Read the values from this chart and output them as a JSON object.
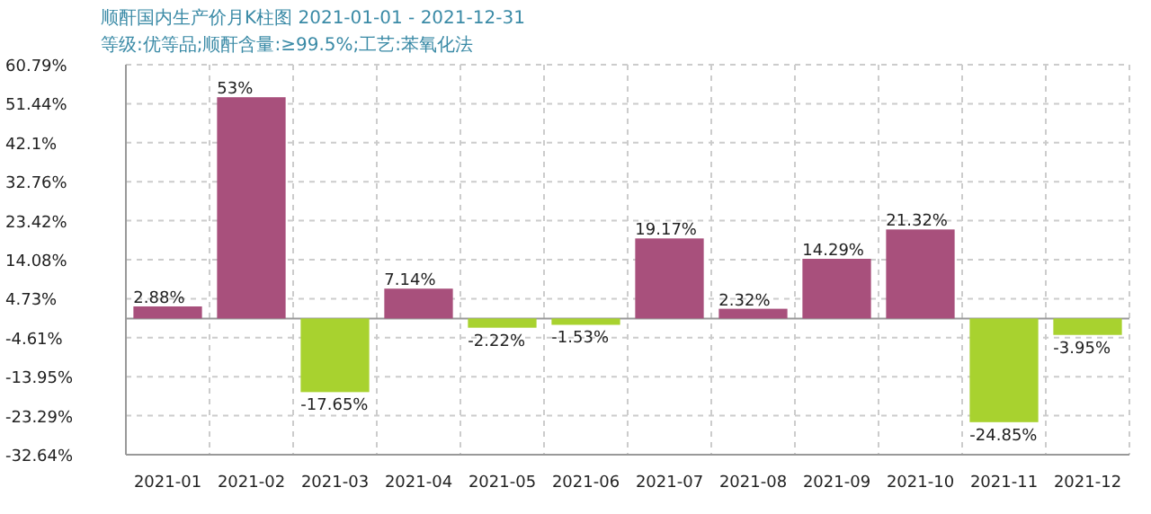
{
  "chart_data": {
    "type": "bar",
    "title": "顺酐国内生产价月K柱图  2021-01-01  -  2021-12-31",
    "subtitle": "等级:优等品;顺酐含量:≥99.5%;工艺:苯氧化法",
    "categories": [
      "2021-01",
      "2021-02",
      "2021-03",
      "2021-04",
      "2021-05",
      "2021-06",
      "2021-07",
      "2021-08",
      "2021-09",
      "2021-10",
      "2021-11",
      "2021-12"
    ],
    "values": [
      2.88,
      53,
      -17.65,
      7.14,
      -2.22,
      -1.53,
      19.17,
      2.32,
      14.29,
      21.32,
      -24.85,
      -3.95
    ],
    "colors": [
      "#a8507c",
      "#a8507c",
      "#a8d22f",
      "#a8507c",
      "#a8d22f",
      "#a8d22f",
      "#a8507c",
      "#a8507c",
      "#a8507c",
      "#a8507c",
      "#a8d22f",
      "#a8d22f"
    ],
    "ylim": [
      -32.64,
      60.79
    ],
    "yticks": [
      {
        "value": 60.79,
        "label": "60.79%"
      },
      {
        "value": 51.44,
        "label": "51.44%"
      },
      {
        "value": 42.1,
        "label": "42.1%"
      },
      {
        "value": 32.76,
        "label": "32.76%"
      },
      {
        "value": 23.42,
        "label": "23.42%"
      },
      {
        "value": 14.08,
        "label": "14.08%"
      },
      {
        "value": 4.73,
        "label": "4.73%"
      },
      {
        "value": -4.61,
        "label": "-4.61%"
      },
      {
        "value": -13.95,
        "label": "-13.95%"
      },
      {
        "value": -23.29,
        "label": "-23.29%"
      },
      {
        "value": -32.64,
        "label": "-32.64%"
      }
    ],
    "value_labels": [
      "2.88%",
      "53%",
      "-17.65%",
      "7.14%",
      "-2.22%",
      "-1.53%",
      "19.17%",
      "2.32%",
      "14.29%",
      "21.32%",
      "-24.85%",
      "-3.95%"
    ],
    "grid": true
  }
}
